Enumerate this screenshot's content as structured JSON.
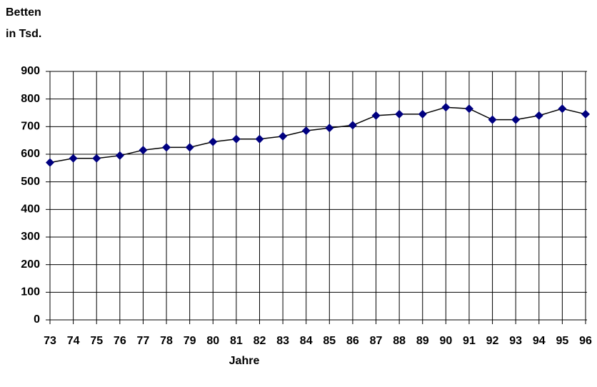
{
  "chart_data": {
    "type": "line",
    "ylabel": [
      "Betten",
      "in Tsd."
    ],
    "xlabel": "Jahre",
    "categories": [
      "73",
      "74",
      "75",
      "76",
      "77",
      "78",
      "79",
      "80",
      "81",
      "82",
      "83",
      "84",
      "85",
      "86",
      "87",
      "88",
      "89",
      "90",
      "91",
      "92",
      "93",
      "94",
      "95",
      "96"
    ],
    "series": [
      {
        "name": "Betten",
        "color": "#000080",
        "line_color": "#000000",
        "values": [
          570,
          585,
          585,
          595,
          615,
          625,
          625,
          645,
          655,
          655,
          665,
          685,
          695,
          705,
          740,
          745,
          745,
          770,
          765,
          725,
          725,
          740,
          765,
          745
        ]
      }
    ],
    "ylim": [
      0,
      900
    ],
    "yticks": [
      0,
      100,
      200,
      300,
      400,
      500,
      600,
      700,
      800,
      900
    ],
    "grid": true
  }
}
